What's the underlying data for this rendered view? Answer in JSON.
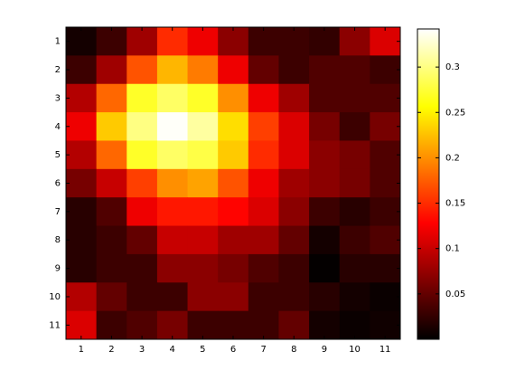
{
  "chart_data": {
    "type": "heatmap",
    "colormap": "hot",
    "x": [
      1,
      2,
      3,
      4,
      5,
      6,
      7,
      8,
      9,
      10,
      11
    ],
    "y": [
      1,
      2,
      3,
      4,
      5,
      6,
      7,
      8,
      9,
      10,
      11
    ],
    "xlim": [
      0.5,
      11.5
    ],
    "ylim": [
      11.5,
      0.5
    ],
    "xticks": [
      1,
      2,
      3,
      4,
      5,
      6,
      7,
      8,
      9,
      10,
      11
    ],
    "yticks": [
      1,
      2,
      3,
      4,
      5,
      6,
      7,
      8,
      9,
      10,
      11
    ],
    "values": [
      [
        0.01,
        0.03,
        0.08,
        0.15,
        0.12,
        0.07,
        0.03,
        0.03,
        0.025,
        0.07,
        0.11
      ],
      [
        0.03,
        0.08,
        0.17,
        0.22,
        0.19,
        0.12,
        0.05,
        0.03,
        0.04,
        0.04,
        0.03
      ],
      [
        0.09,
        0.18,
        0.27,
        0.29,
        0.27,
        0.2,
        0.12,
        0.08,
        0.04,
        0.04,
        0.04
      ],
      [
        0.12,
        0.23,
        0.3,
        0.34,
        0.31,
        0.24,
        0.16,
        0.11,
        0.06,
        0.03,
        0.06
      ],
      [
        0.09,
        0.18,
        0.27,
        0.29,
        0.28,
        0.23,
        0.15,
        0.11,
        0.07,
        0.06,
        0.04
      ],
      [
        0.06,
        0.1,
        0.16,
        0.2,
        0.21,
        0.17,
        0.12,
        0.08,
        0.07,
        0.06,
        0.04
      ],
      [
        0.02,
        0.04,
        0.12,
        0.14,
        0.14,
        0.13,
        0.11,
        0.07,
        0.03,
        0.02,
        0.03
      ],
      [
        0.02,
        0.03,
        0.05,
        0.1,
        0.1,
        0.08,
        0.08,
        0.05,
        0.01,
        0.03,
        0.04
      ],
      [
        0.02,
        0.03,
        0.03,
        0.07,
        0.07,
        0.06,
        0.04,
        0.03,
        0.002,
        0.02,
        0.02
      ],
      [
        0.09,
        0.05,
        0.03,
        0.03,
        0.07,
        0.07,
        0.03,
        0.03,
        0.02,
        0.01,
        0.005
      ],
      [
        0.11,
        0.03,
        0.04,
        0.06,
        0.03,
        0.03,
        0.03,
        0.05,
        0.01,
        0.005,
        0.008
      ]
    ],
    "clim": [
      0,
      0.342
    ],
    "cticks": [
      0.05,
      0.1,
      0.15,
      0.2,
      0.25,
      0.3
    ]
  }
}
